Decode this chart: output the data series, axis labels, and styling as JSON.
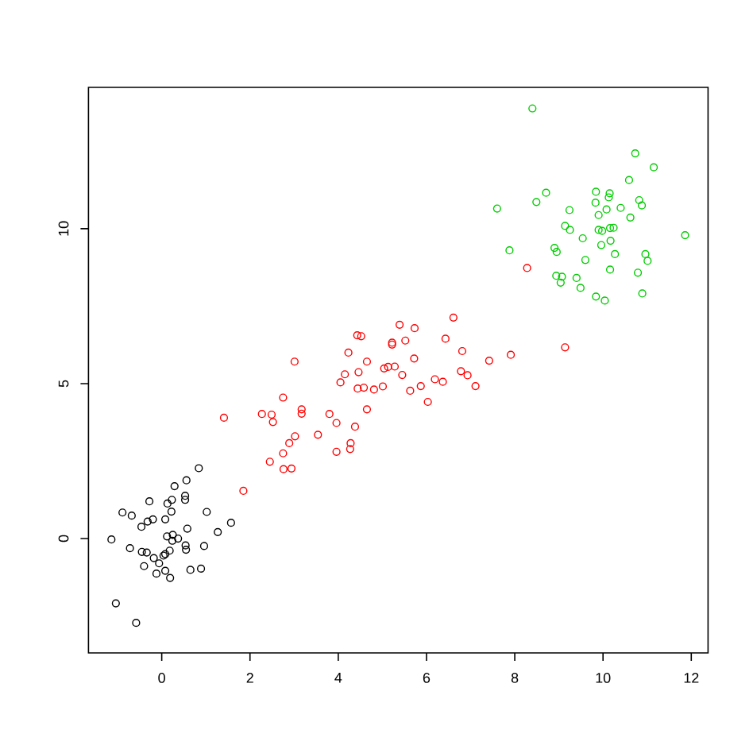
{
  "chart_data": {
    "type": "scatter",
    "marker": "circle",
    "grid": false,
    "xlim": [
      -1.66,
      12.38
    ],
    "ylim": [
      -3.69,
      14.56
    ],
    "xticks": [
      0,
      2,
      4,
      6,
      8,
      10,
      12
    ],
    "yticks": [
      0,
      5,
      10
    ],
    "series": [
      {
        "color": "#000000",
        "x": [
          0.84,
          0.56,
          0.29,
          0.53,
          0.53,
          0.23,
          -0.28,
          0.13,
          -0.89,
          -0.68,
          0.22,
          1.02,
          -0.2,
          -0.32,
          -0.46,
          0.08,
          1.57,
          0.58,
          1.27,
          -1.14,
          0.12,
          0.25,
          0.37,
          0.24,
          -0.72,
          0.54,
          0.96,
          0.55,
          -0.45,
          -0.34,
          0.08,
          0.04,
          -0.18,
          0.18,
          -0.4,
          -0.06,
          0.65,
          0.89,
          -0.12,
          0.08,
          0.19,
          -1.04,
          -0.58
        ],
        "values": [
          2.27,
          1.88,
          1.69,
          1.38,
          1.25,
          1.25,
          1.2,
          1.13,
          0.84,
          0.74,
          0.87,
          0.86,
          0.62,
          0.55,
          0.38,
          0.62,
          0.51,
          0.32,
          0.21,
          -0.03,
          0.07,
          0.12,
          0.0,
          -0.07,
          -0.31,
          -0.22,
          -0.24,
          -0.36,
          -0.43,
          -0.45,
          -0.5,
          -0.55,
          -0.63,
          -0.39,
          -0.89,
          -0.8,
          -1.01,
          -0.97,
          -1.13,
          -1.04,
          -1.27,
          -2.09,
          -2.72
        ]
      },
      {
        "color": "#ff0000",
        "x": [
          1.85,
          1.41,
          3.01,
          2.75,
          2.27,
          2.49,
          2.52,
          3.17,
          3.17,
          3.02,
          2.89,
          2.75,
          2.45,
          2.76,
          2.94,
          3.54,
          3.8,
          3.96,
          4.38,
          3.96,
          4.28,
          4.27,
          4.65,
          4.44,
          4.58,
          4.81,
          5.01,
          4.05,
          4.15,
          4.46,
          4.65,
          4.23,
          4.43,
          4.52,
          5.04,
          5.13,
          5.28,
          5.45,
          5.22,
          5.22,
          5.52,
          5.39,
          5.73,
          5.72,
          5.63,
          5.87,
          6.03,
          6.61,
          6.43,
          6.81,
          6.19,
          6.37,
          6.78,
          6.93,
          7.11,
          7.42,
          7.91,
          9.14,
          8.28
        ],
        "values": [
          1.54,
          3.9,
          5.71,
          4.55,
          4.02,
          4.0,
          3.76,
          4.17,
          4.03,
          3.3,
          3.08,
          2.75,
          2.48,
          2.24,
          2.26,
          3.35,
          4.02,
          3.73,
          3.61,
          2.8,
          3.08,
          2.89,
          4.17,
          4.84,
          4.87,
          4.81,
          4.91,
          5.04,
          5.3,
          5.37,
          5.71,
          6.0,
          6.56,
          6.53,
          5.49,
          5.54,
          5.55,
          5.28,
          6.32,
          6.26,
          6.39,
          6.9,
          6.79,
          5.81,
          4.77,
          4.92,
          4.41,
          7.13,
          6.45,
          6.05,
          5.14,
          5.06,
          5.4,
          5.27,
          4.92,
          5.74,
          5.93,
          6.17,
          8.73
        ]
      },
      {
        "color": "#00cd00",
        "x": [
          8.4,
          10.73,
          11.15,
          10.59,
          8.71,
          8.49,
          7.6,
          9.84,
          10.15,
          10.13,
          9.83,
          10.82,
          10.88,
          9.24,
          10.08,
          10.4,
          9.9,
          10.62,
          9.14,
          9.25,
          9.9,
          9.98,
          10.16,
          10.24,
          9.54,
          10.17,
          9.96,
          11.86,
          7.88,
          8.9,
          8.95,
          10.27,
          10.96,
          11.01,
          9.6,
          10.16,
          10.79,
          8.94,
          9.07,
          9.04,
          9.4,
          9.49,
          10.89,
          9.84,
          10.04
        ],
        "values": [
          13.88,
          12.43,
          11.98,
          11.57,
          11.16,
          10.86,
          10.65,
          11.19,
          11.14,
          11.01,
          10.84,
          10.92,
          10.75,
          10.6,
          10.62,
          10.67,
          10.44,
          10.36,
          10.09,
          9.96,
          9.96,
          9.93,
          10.02,
          10.03,
          9.69,
          9.61,
          9.47,
          9.79,
          9.3,
          9.38,
          9.25,
          9.18,
          9.18,
          8.96,
          8.99,
          8.68,
          8.58,
          8.48,
          8.45,
          8.26,
          8.41,
          8.09,
          7.91,
          7.81,
          7.68
        ]
      }
    ]
  }
}
